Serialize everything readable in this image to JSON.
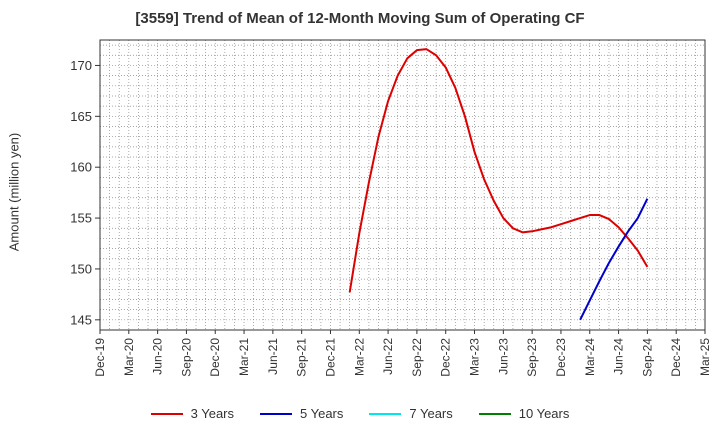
{
  "chart_data": {
    "type": "line",
    "title": "[3559]  Trend of Mean of 12-Month Moving Sum of Operating CF",
    "ylabel": "Amount (million yen)",
    "xlabel": "",
    "ylim": [
      144,
      172.5
    ],
    "yticks": [
      145,
      150,
      155,
      160,
      165,
      170
    ],
    "xlim": [
      "2019-12",
      "2025-03"
    ],
    "categories": [
      "Dec-19",
      "Mar-20",
      "Jun-20",
      "Sep-20",
      "Dec-20",
      "Mar-21",
      "Jun-21",
      "Sep-21",
      "Dec-21",
      "Mar-22",
      "Jun-22",
      "Sep-22",
      "Dec-22",
      "Mar-23",
      "Jun-23",
      "Sep-23",
      "Dec-23",
      "Mar-24",
      "Jun-24",
      "Sep-24",
      "Dec-24",
      "Mar-25"
    ],
    "grid": true,
    "legend_position": "bottom",
    "series": [
      {
        "name": "3 Years",
        "color": "#dd0000",
        "points": [
          [
            "2022-02",
            147.7
          ],
          [
            "2022-03",
            153.5
          ],
          [
            "2022-04",
            158.5
          ],
          [
            "2022-05",
            163.0
          ],
          [
            "2022-06",
            166.5
          ],
          [
            "2022-07",
            169.0
          ],
          [
            "2022-08",
            170.7
          ],
          [
            "2022-09",
            171.5
          ],
          [
            "2022-10",
            171.6
          ],
          [
            "2022-11",
            171.0
          ],
          [
            "2022-12",
            169.8
          ],
          [
            "2023-01",
            167.8
          ],
          [
            "2023-02",
            165.0
          ],
          [
            "2023-03",
            161.5
          ],
          [
            "2023-04",
            158.8
          ],
          [
            "2023-05",
            156.7
          ],
          [
            "2023-06",
            155.0
          ],
          [
            "2023-07",
            154.0
          ],
          [
            "2023-08",
            153.6
          ],
          [
            "2023-09",
            153.7
          ],
          [
            "2023-10",
            153.9
          ],
          [
            "2023-11",
            154.1
          ],
          [
            "2023-12",
            154.4
          ],
          [
            "2024-01",
            154.7
          ],
          [
            "2024-02",
            155.0
          ],
          [
            "2024-03",
            155.3
          ],
          [
            "2024-04",
            155.3
          ],
          [
            "2024-05",
            154.9
          ],
          [
            "2024-06",
            154.1
          ],
          [
            "2024-07",
            153.0
          ],
          [
            "2024-08",
            151.8
          ],
          [
            "2024-09",
            150.2
          ]
        ]
      },
      {
        "name": "5 Years",
        "color": "#0000cc",
        "points": [
          [
            "2024-02",
            145.0
          ],
          [
            "2024-03",
            146.9
          ],
          [
            "2024-04",
            148.8
          ],
          [
            "2024-05",
            150.6
          ],
          [
            "2024-06",
            152.2
          ],
          [
            "2024-07",
            153.7
          ],
          [
            "2024-08",
            155.0
          ],
          [
            "2024-09",
            156.9
          ]
        ]
      },
      {
        "name": "7 Years",
        "color": "#00e5ee",
        "points": []
      },
      {
        "name": "10 Years",
        "color": "#008000",
        "points": []
      }
    ]
  }
}
